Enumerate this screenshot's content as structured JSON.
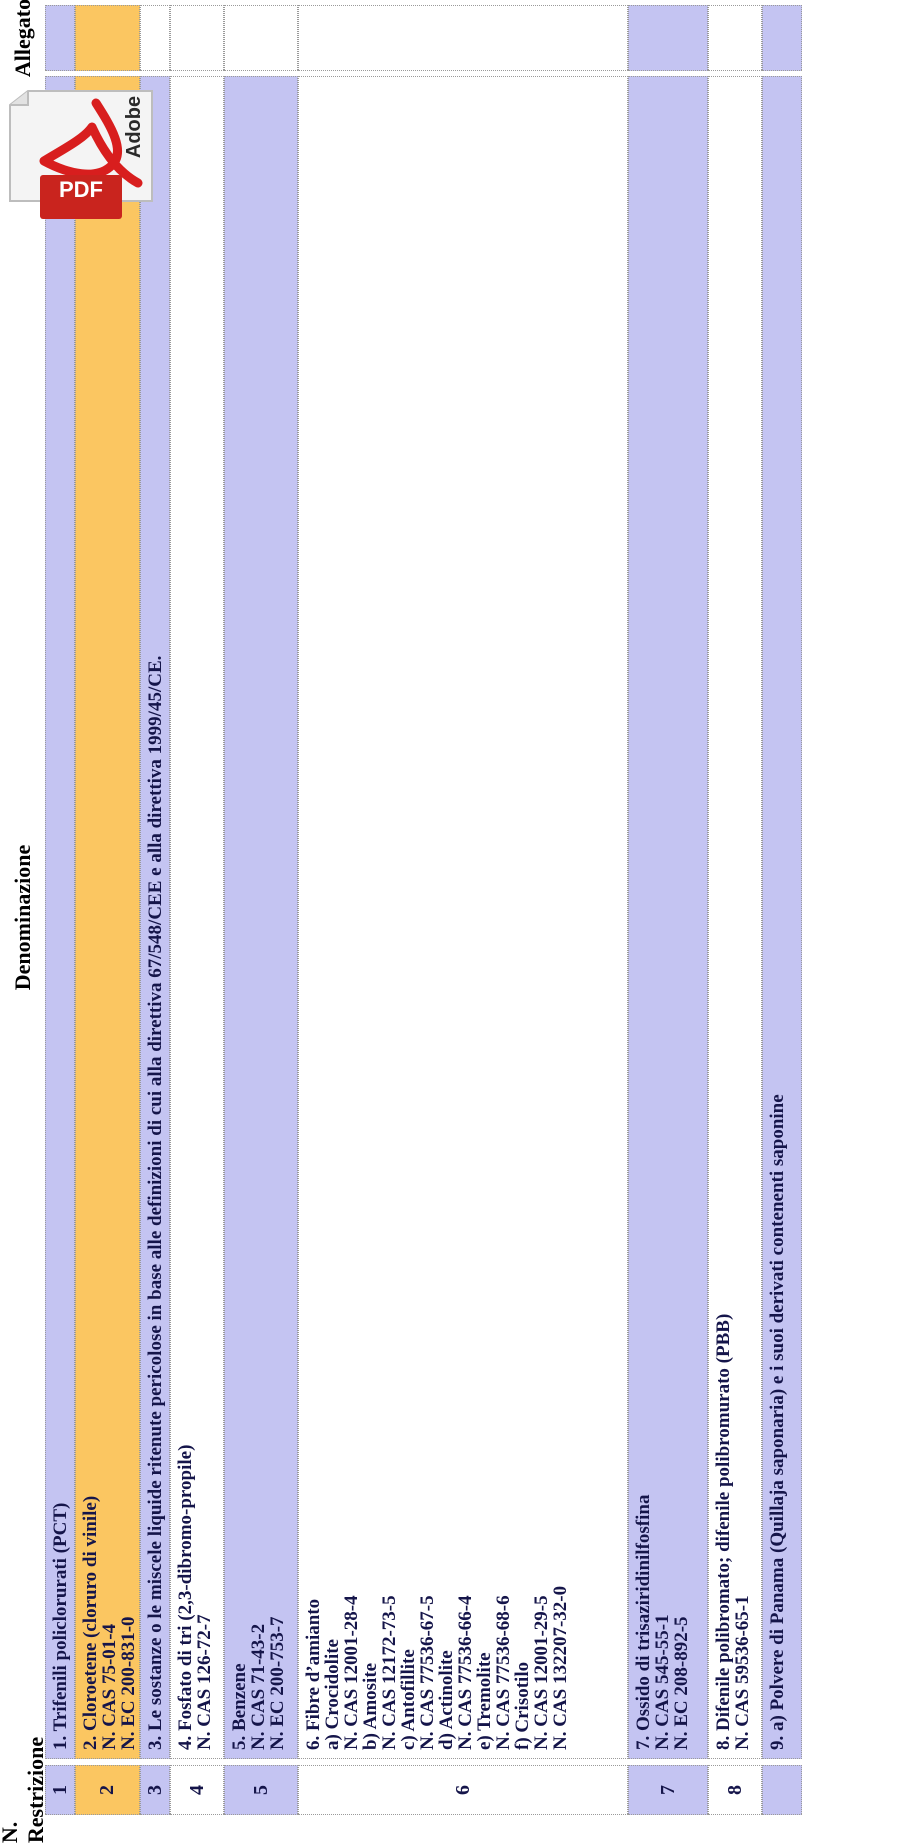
{
  "table": {
    "headers": {
      "number": "N. Restrizione",
      "name": "Denominazione",
      "attachment": "Allegato"
    },
    "rows": [
      {
        "number": "1",
        "lines": [
          "1. Trifenili policlorurati (PCT)"
        ]
      },
      {
        "number": "2",
        "lines": [
          "2. Cloroetene (cloruro di vinile)",
          "N. CAS 75-01-4",
          "N. EC 200-831-0"
        ]
      },
      {
        "number": "3",
        "lines": [
          "3. Le sostanze o le miscele liquide ritenute pericolose in base alle definizioni di cui alla direttiva 67/548/CEE e alla direttiva 1999/45/CE."
        ]
      },
      {
        "number": "4",
        "lines": [
          "4. Fosfato di tri (2,3-dibromo-propile)",
          "N. CAS 126-72-7"
        ]
      },
      {
        "number": "5",
        "lines": [
          "5. Benzene",
          "N. CAS 71-43-2",
          "N. EC 200-753-7"
        ]
      },
      {
        "number": "6",
        "lines": [
          "6. Fibre d’amianto",
          "a) Crocidolite",
          "N. CAS 12001-28-4",
          "b) Amosite",
          "N. CAS 12172-73-5",
          "c) Antofillite",
          "N. CAS 77536-67-5",
          "d) Actinolite",
          "N. CAS 77536-66-4",
          "e) Tremolite",
          "N. CAS 77536-68-6",
          "f) Crisotilo",
          "N. CAS 12001-29-5",
          "N. CAS 132207-32-0"
        ]
      },
      {
        "number": "7",
        "lines": [
          "7. Ossido di trisaziridinilfosfina",
          "N. CAS 545-55-1",
          "N. EC 208-892-5"
        ]
      },
      {
        "number": "8",
        "lines": [
          "8. Difenile polibromato; difenile polibromurato (PBB)",
          "N. CAS 59536-65-1"
        ]
      },
      {
        "number": "",
        "lines": [
          "9. a) Polvere di Panama (Quillaja saponaria) e i suoi derivati contenenti saponine"
        ]
      }
    ]
  },
  "pdf_icon": {
    "pdf_label": "PDF",
    "brand_label": "Adobe",
    "accent": "#d81e1e"
  },
  "colors": {
    "lavender": "#c4c4f2",
    "orange": "#fbc661",
    "text": "#15154a"
  }
}
